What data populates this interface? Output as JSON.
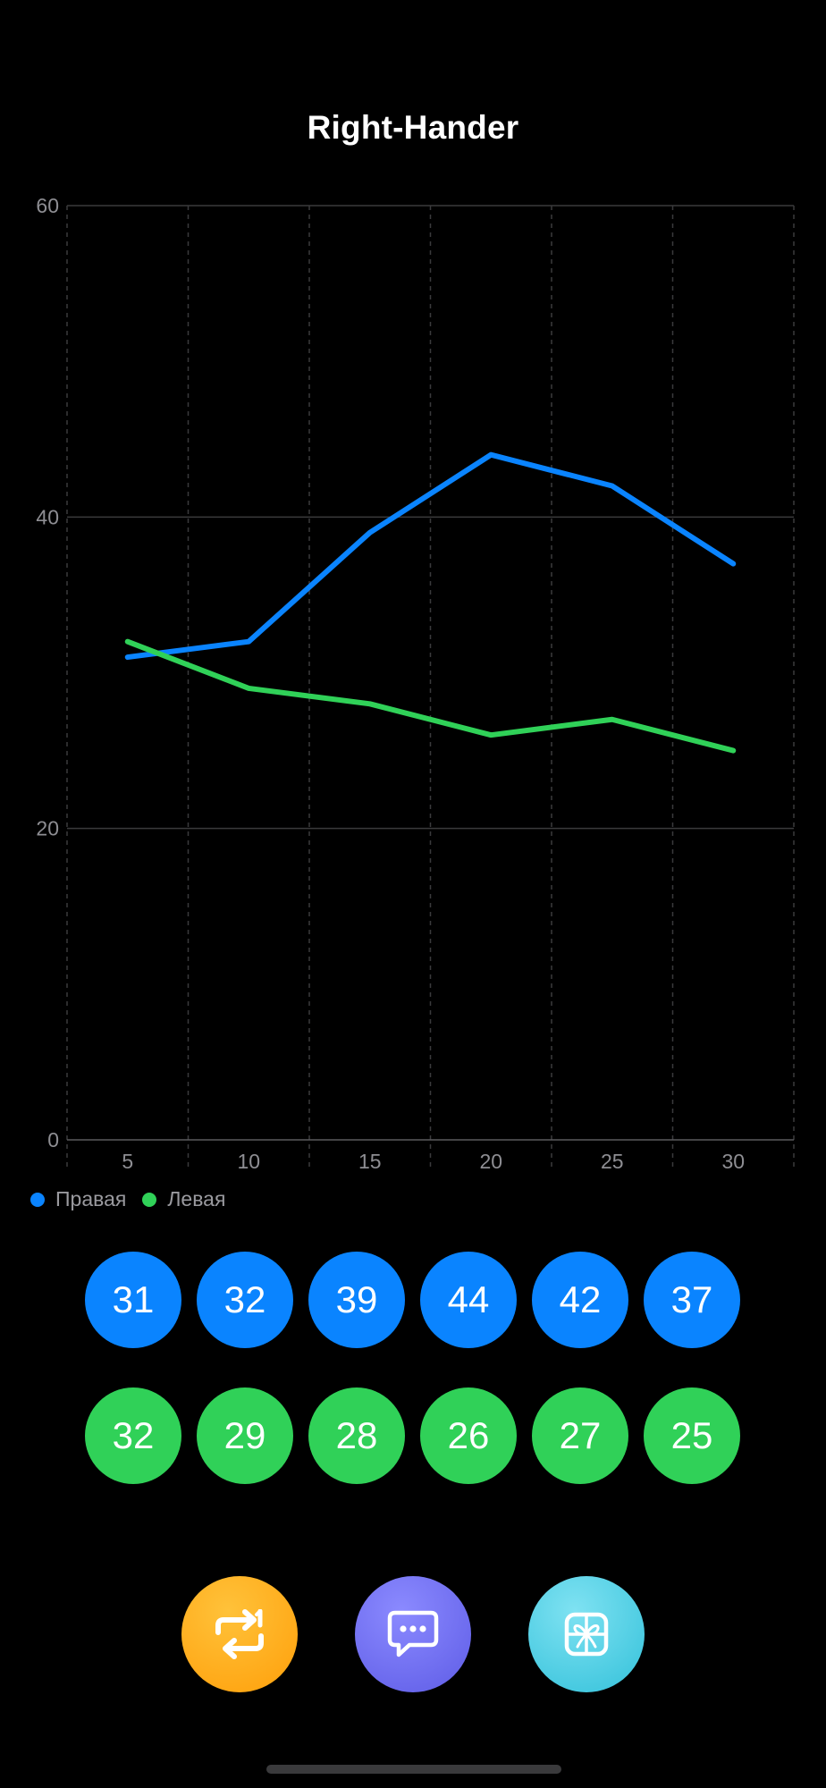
{
  "header": {
    "title": "Right-Hander"
  },
  "chart_data": {
    "type": "line",
    "x": [
      5,
      10,
      15,
      20,
      25,
      30
    ],
    "series": [
      {
        "name": "Правая",
        "color": "#0a84ff",
        "values": [
          31,
          32,
          39,
          44,
          42,
          37
        ]
      },
      {
        "name": "Левая",
        "color": "#30d158",
        "values": [
          32,
          29,
          28,
          26,
          27,
          25
        ]
      }
    ],
    "yticks": [
      0,
      20,
      40,
      60
    ],
    "ylim": [
      0,
      60
    ],
    "grid": true,
    "legend": "bottom-left"
  },
  "values": {
    "right": [
      "31",
      "32",
      "39",
      "44",
      "42",
      "37"
    ],
    "left": [
      "32",
      "29",
      "28",
      "26",
      "27",
      "25"
    ]
  },
  "actions": [
    {
      "icon": "repeat-once-icon",
      "color": "#ff9f0a"
    },
    {
      "icon": "chat-bubble-icon",
      "color": "#5e5ce6"
    },
    {
      "icon": "gift-icon",
      "color": "#40c8e0"
    }
  ]
}
